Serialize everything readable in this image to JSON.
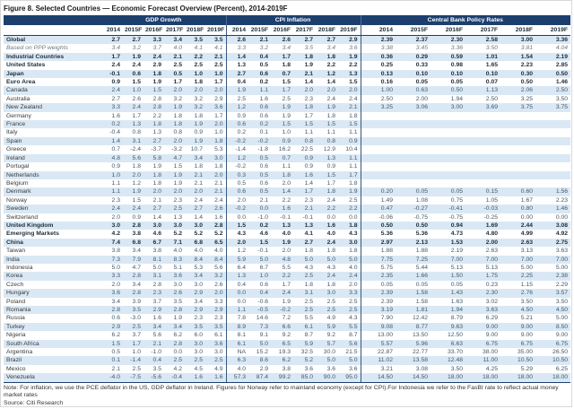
{
  "figure": {
    "title": "Figure 8. Selected Countries — Economic Forecast Overview (Percent), 2014-2019F"
  },
  "colors": {
    "header_bg": "#1c3f6e",
    "row_alt_bg": "#d9e8f4",
    "separator": "#35597f",
    "number_text": "#44586a"
  },
  "table": {
    "groups": [
      "GDP Growth",
      "CPI Inflation",
      "Central Bank Policy Rates"
    ],
    "years": [
      "2014",
      "2015F",
      "2016F",
      "2017F",
      "2018F",
      "2019F"
    ],
    "rows": [
      {
        "country": "Global",
        "style": "bold",
        "gdp": [
          "2.7",
          "2.7",
          "3.3",
          "3.4",
          "3.5",
          "3.5"
        ],
        "cpi": [
          "2.6",
          "2.1",
          "2.6",
          "2.7",
          "2.7",
          "2.9"
        ],
        "cbr": [
          "2.39",
          "2.37",
          "2.30",
          "2.58",
          "3.00",
          "3.36"
        ]
      },
      {
        "country": "Based on PPP weights",
        "style": "italic",
        "gdp": [
          "3.4",
          "3.2",
          "3.7",
          "4.0",
          "4.1",
          "4.1"
        ],
        "cpi": [
          "3.3",
          "3.2",
          "3.4",
          "3.5",
          "3.4",
          "3.6"
        ],
        "cbr": [
          "3.38",
          "3.45",
          "3.36",
          "3.50",
          "3.81",
          "4.04"
        ]
      },
      {
        "country": "Industrial Countries",
        "style": "bold",
        "gdp": [
          "1.7",
          "1.9",
          "2.4",
          "2.1",
          "2.2",
          "2.1"
        ],
        "cpi": [
          "1.4",
          "0.4",
          "1.7",
          "1.8",
          "1.8",
          "1.9"
        ],
        "cbr": [
          "0.36",
          "0.29",
          "0.59",
          "1.01",
          "1.54",
          "2.19"
        ]
      },
      {
        "country": "United States",
        "style": "bold",
        "gdp": [
          "2.4",
          "2.4",
          "2.9",
          "2.5",
          "2.5",
          "2.5"
        ],
        "cpi": [
          "1.3",
          "0.5",
          "1.8",
          "1.9",
          "2.2",
          "2.2"
        ],
        "cbr": [
          "0.25",
          "0.33",
          "0.98",
          "1.65",
          "2.23",
          "2.85"
        ]
      },
      {
        "country": "Japan",
        "style": "bold",
        "gdp": [
          "-0.1",
          "0.6",
          "1.8",
          "0.5",
          "1.0",
          "1.0"
        ],
        "cpi": [
          "2.7",
          "0.6",
          "0.7",
          "2.1",
          "1.2",
          "1.3"
        ],
        "cbr": [
          "0.13",
          "0.10",
          "0.10",
          "0.10",
          "0.30",
          "0.50"
        ]
      },
      {
        "country": "Euro Area",
        "style": "bold",
        "gdp": [
          "0.9",
          "1.5",
          "1.9",
          "1.7",
          "1.8",
          "1.7"
        ],
        "cpi": [
          "0.4",
          "0.2",
          "1.5",
          "1.4",
          "1.4",
          "1.5"
        ],
        "cbr": [
          "0.16",
          "0.05",
          "0.05",
          "0.07",
          "0.50",
          "1.46"
        ]
      },
      {
        "country": "Canada",
        "style": "normal",
        "gdp": [
          "2.4",
          "1.0",
          "1.5",
          "2.0",
          "2.0",
          "2.0"
        ],
        "cpi": [
          "1.9",
          "1.1",
          "1.7",
          "2.0",
          "2.0",
          "2.0"
        ],
        "cbr": [
          "1.00",
          "0.63",
          "0.50",
          "1.13",
          "2.06",
          "2.50"
        ]
      },
      {
        "country": "Australia",
        "style": "normal",
        "gdp": [
          "2.7",
          "2.6",
          "2.8",
          "3.2",
          "3.2",
          "2.9"
        ],
        "cpi": [
          "2.5",
          "1.6",
          "2.5",
          "2.3",
          "2.4",
          "2.4"
        ],
        "cbr": [
          "2.50",
          "2.00",
          "1.94",
          "2.50",
          "3.25",
          "3.50"
        ]
      },
      {
        "country": "New Zealand",
        "style": "normal",
        "gdp": [
          "3.3",
          "2.4",
          "2.8",
          "1.9",
          "3.2",
          "3.6"
        ],
        "cpi": [
          "1.2",
          "0.6",
          "1.9",
          "1.8",
          "1.9",
          "2.1"
        ],
        "cbr": [
          "3.25",
          "3.06",
          "3.00",
          "3.69",
          "3.75",
          "3.75"
        ]
      },
      {
        "country": "Germany",
        "style": "normal",
        "gdp": [
          "1.6",
          "1.7",
          "2.2",
          "1.8",
          "1.8",
          "1.7"
        ],
        "cpi": [
          "0.9",
          "0.6",
          "1.9",
          "1.7",
          "1.8",
          "1.8"
        ],
        "cbr": [
          "",
          "",
          "",
          "",
          "",
          ""
        ]
      },
      {
        "country": "France",
        "style": "normal",
        "gdp": [
          "0.2",
          "1.3",
          "1.8",
          "1.8",
          "1.9",
          "2.0"
        ],
        "cpi": [
          "0.6",
          "0.2",
          "1.5",
          "1.5",
          "1.5",
          "1.5"
        ],
        "cbr": [
          "",
          "",
          "",
          "",
          "",
          ""
        ]
      },
      {
        "country": "Italy",
        "style": "normal",
        "gdp": [
          "-0.4",
          "0.8",
          "1.3",
          "0.8",
          "0.9",
          "1.0"
        ],
        "cpi": [
          "0.2",
          "0.1",
          "1.0",
          "1.1",
          "1.1",
          "1.1"
        ],
        "cbr": [
          "",
          "",
          "",
          "",
          "",
          ""
        ]
      },
      {
        "country": "Spain",
        "style": "normal",
        "gdp": [
          "1.4",
          "3.1",
          "2.7",
          "2.0",
          "1.9",
          "1.8"
        ],
        "cpi": [
          "-0.2",
          "-0.2",
          "0.9",
          "0.8",
          "0.8",
          "0.9"
        ],
        "cbr": [
          "",
          "",
          "",
          "",
          "",
          ""
        ]
      },
      {
        "country": "Greece",
        "style": "normal",
        "gdp": [
          "0.7",
          "-2.4",
          "-3.7",
          "-3.2",
          "10.7",
          "5.3"
        ],
        "cpi": [
          "-1.4",
          "-1.8",
          "16.2",
          "22.5",
          "12.9",
          "10.4"
        ],
        "cbr": [
          "",
          "",
          "",
          "",
          "",
          ""
        ]
      },
      {
        "country": "Ireland",
        "style": "normal",
        "gdp": [
          "4.8",
          "5.6",
          "5.8",
          "4.7",
          "3.4",
          "3.0"
        ],
        "cpi": [
          "1.2",
          "0.5",
          "0.7",
          "0.9",
          "1.3",
          "1.1"
        ],
        "cbr": [
          "",
          "",
          "",
          "",
          "",
          ""
        ]
      },
      {
        "country": "Portugal",
        "style": "normal",
        "gdp": [
          "0.9",
          "1.8",
          "1.9",
          "1.5",
          "1.8",
          "1.8"
        ],
        "cpi": [
          "-0.2",
          "0.6",
          "1.1",
          "0.9",
          "0.9",
          "1.1"
        ],
        "cbr": [
          "",
          "",
          "",
          "",
          "",
          ""
        ]
      },
      {
        "country": "Netherlands",
        "style": "normal",
        "gdp": [
          "1.0",
          "2.0",
          "1.8",
          "1.9",
          "2.1",
          "2.0"
        ],
        "cpi": [
          "0.3",
          "0.5",
          "1.8",
          "1.6",
          "1.5",
          "1.7"
        ],
        "cbr": [
          "",
          "",
          "",
          "",
          "",
          ""
        ]
      },
      {
        "country": "Belgium",
        "style": "normal",
        "gdp": [
          "1.1",
          "1.2",
          "1.8",
          "1.9",
          "2.1",
          "2.1"
        ],
        "cpi": [
          "0.5",
          "0.6",
          "2.0",
          "1.4",
          "1.7",
          "1.8"
        ],
        "cbr": [
          "",
          "",
          "",
          "",
          "",
          ""
        ]
      },
      {
        "country": "Denmark",
        "style": "normal",
        "gdp": [
          "1.1",
          "1.9",
          "2.0",
          "2.0",
          "2.0",
          "2.1"
        ],
        "cpi": [
          "0.6",
          "0.5",
          "1.4",
          "1.7",
          "1.8",
          "1.9"
        ],
        "cbr": [
          "0.20",
          "0.05",
          "0.05",
          "0.15",
          "0.60",
          "1.56"
        ]
      },
      {
        "country": "Norway",
        "style": "normal",
        "gdp": [
          "2.3",
          "1.5",
          "2.1",
          "2.3",
          "2.4",
          "2.4"
        ],
        "cpi": [
          "2.0",
          "2.1",
          "2.2",
          "2.3",
          "2.4",
          "2.5"
        ],
        "cbr": [
          "1.49",
          "1.08",
          "0.75",
          "1.05",
          "1.67",
          "2.23"
        ]
      },
      {
        "country": "Sweden",
        "style": "normal",
        "gdp": [
          "2.4",
          "2.4",
          "2.7",
          "2.5",
          "2.7",
          "2.6"
        ],
        "cpi": [
          "-0.2",
          "0.0",
          "1.6",
          "2.1",
          "2.2",
          "2.2"
        ],
        "cbr": [
          "0.47",
          "-0.27",
          "-0.41",
          "-0.03",
          "0.80",
          "1.46"
        ]
      },
      {
        "country": "Switzerland",
        "style": "normal",
        "gdp": [
          "2.0",
          "0.9",
          "1.4",
          "1.3",
          "1.4",
          "1.6"
        ],
        "cpi": [
          "0.0",
          "-1.0",
          "-0.1",
          "-0.1",
          "0.0",
          "0.0"
        ],
        "cbr": [
          "-0.06",
          "-0.75",
          "-0.75",
          "-0.25",
          "0.00",
          "0.00"
        ]
      },
      {
        "country": "United Kingdom",
        "style": "bold",
        "gdp": [
          "3.0",
          "2.8",
          "3.0",
          "3.0",
          "3.0",
          "2.8"
        ],
        "cpi": [
          "1.5",
          "0.2",
          "1.3",
          "1.3",
          "1.6",
          "1.8"
        ],
        "cbr": [
          "0.50",
          "0.50",
          "0.94",
          "1.69",
          "2.44",
          "3.08"
        ]
      },
      {
        "country": "Emerging Markets",
        "style": "bold",
        "gdp": [
          "4.2",
          "3.8",
          "4.6",
          "5.2",
          "5.2",
          "5.2"
        ],
        "cpi": [
          "4.3",
          "4.6",
          "4.0",
          "4.1",
          "4.0",
          "4.3"
        ],
        "cbr": [
          "5.36",
          "5.36",
          "4.73",
          "4.80",
          "4.99",
          "4.92"
        ]
      },
      {
        "country": "China",
        "style": "bold",
        "gdp": [
          "7.4",
          "6.8",
          "6.7",
          "7.1",
          "6.8",
          "6.5"
        ],
        "cpi": [
          "2.0",
          "1.5",
          "1.9",
          "2.7",
          "2.4",
          "3.0"
        ],
        "cbr": [
          "2.97",
          "2.13",
          "1.53",
          "2.00",
          "2.63",
          "2.75"
        ]
      },
      {
        "country": "Taiwan",
        "style": "normal",
        "gdp": [
          "3.8",
          "3.4",
          "3.8",
          "4.0",
          "4.0",
          "4.0"
        ],
        "cpi": [
          "1.2",
          "-0.1",
          "2.0",
          "1.8",
          "1.8",
          "1.8"
        ],
        "cbr": [
          "1.88",
          "1.88",
          "2.19",
          "2.63",
          "3.13",
          "3.63"
        ]
      },
      {
        "country": "India",
        "style": "normal",
        "gdp": [
          "7.3",
          "7.9",
          "8.1",
          "8.3",
          "8.4",
          "8.4"
        ],
        "cpi": [
          "5.9",
          "5.0",
          "4.8",
          "5.0",
          "5.0",
          "5.0"
        ],
        "cbr": [
          "7.75",
          "7.25",
          "7.00",
          "7.00",
          "7.00",
          "7.00"
        ]
      },
      {
        "country": "Indonesia",
        "style": "normal",
        "gdp": [
          "5.0",
          "4.7",
          "5.0",
          "5.1",
          "5.3",
          "5.6"
        ],
        "cpi": [
          "6.4",
          "6.7",
          "5.5",
          "4.3",
          "4.3",
          "4.0"
        ],
        "cbr": [
          "5.75",
          "5.44",
          "5.13",
          "5.13",
          "5.00",
          "5.00"
        ]
      },
      {
        "country": "Korea",
        "style": "normal",
        "gdp": [
          "3.3",
          "2.8",
          "3.1",
          "3.6",
          "3.4",
          "3.2"
        ],
        "cpi": [
          "1.3",
          "1.0",
          "2.2",
          "2.5",
          "2.4",
          "2.4"
        ],
        "cbr": [
          "2.35",
          "1.66",
          "1.50",
          "1.75",
          "2.25",
          "2.38"
        ]
      },
      {
        "country": "Czech",
        "style": "normal",
        "gdp": [
          "2.0",
          "3.4",
          "2.8",
          "3.0",
          "3.0",
          "2.6"
        ],
        "cpi": [
          "0.4",
          "0.6",
          "1.7",
          "1.8",
          "1.8",
          "2.0"
        ],
        "cbr": [
          "0.05",
          "0.05",
          "0.05",
          "0.23",
          "1.15",
          "2.29"
        ]
      },
      {
        "country": "Hungary",
        "style": "normal",
        "gdp": [
          "3.6",
          "2.8",
          "2.3",
          "2.6",
          "2.9",
          "2.0"
        ],
        "cpi": [
          "0.0",
          "0.4",
          "2.4",
          "3.1",
          "3.0",
          "3.3"
        ],
        "cbr": [
          "2.39",
          "1.58",
          "1.43",
          "2.30",
          "2.76",
          "3.57"
        ]
      },
      {
        "country": "Poland",
        "style": "normal",
        "gdp": [
          "3.4",
          "3.9",
          "3.7",
          "3.5",
          "3.4",
          "3.3"
        ],
        "cpi": [
          "0.0",
          "-0.6",
          "1.9",
          "2.5",
          "2.5",
          "2.5"
        ],
        "cbr": [
          "2.39",
          "1.58",
          "1.63",
          "3.02",
          "3.50",
          "3.50"
        ]
      },
      {
        "country": "Romania",
        "style": "normal",
        "gdp": [
          "2.8",
          "3.5",
          "2.9",
          "2.8",
          "2.9",
          "2.9"
        ],
        "cpi": [
          "1.1",
          "-0.5",
          "-0.2",
          "2.5",
          "2.5",
          "2.5"
        ],
        "cbr": [
          "3.19",
          "1.81",
          "1.94",
          "3.63",
          "4.50",
          "4.50"
        ]
      },
      {
        "country": "Russia",
        "style": "normal",
        "gdp": [
          "0.6",
          "-3.0",
          "1.6",
          "1.9",
          "2.3",
          "2.3"
        ],
        "cpi": [
          "7.8",
          "14.6",
          "7.2",
          "5.5",
          "4.9",
          "4.3"
        ],
        "cbr": [
          "7.90",
          "12.42",
          "8.79",
          "6.29",
          "5.21",
          "5.00"
        ]
      },
      {
        "country": "Turkey",
        "style": "normal",
        "gdp": [
          "2.9",
          "2.5",
          "3.4",
          "3.4",
          "3.5",
          "3.5"
        ],
        "cpi": [
          "8.9",
          "7.3",
          "6.6",
          "6.1",
          "5.9",
          "5.5"
        ],
        "cbr": [
          "9.08",
          "8.77",
          "9.63",
          "9.00",
          "9.00",
          "8.50"
        ]
      },
      {
        "country": "Nigeria",
        "style": "normal",
        "gdp": [
          "6.2",
          "3.7",
          "5.6",
          "6.2",
          "6.0",
          "6.1"
        ],
        "cpi": [
          "8.1",
          "9.1",
          "9.2",
          "8.7",
          "9.2",
          "8.7"
        ],
        "cbr": [
          "13.00",
          "13.50",
          "12.50",
          "9.00",
          "9.00",
          "9.00"
        ]
      },
      {
        "country": "South Africa",
        "style": "normal",
        "gdp": [
          "1.5",
          "1.7",
          "2.1",
          "2.8",
          "3.0",
          "3.6"
        ],
        "cpi": [
          "6.1",
          "5.0",
          "6.5",
          "5.9",
          "5.7",
          "5.6"
        ],
        "cbr": [
          "5.57",
          "5.96",
          "6.63",
          "6.75",
          "6.75",
          "6.75"
        ]
      },
      {
        "country": "Argentina",
        "style": "normal",
        "gdp": [
          "0.5",
          "1.0",
          "-1.0",
          "0.0",
          "3.0",
          "3.0"
        ],
        "cpi": [
          "NA",
          "15.2",
          "19.3",
          "32.5",
          "30.0",
          "21.5"
        ],
        "cbr": [
          "22.87",
          "22.77",
          "33.70",
          "38.00",
          "35.00",
          "26.50"
        ]
      },
      {
        "country": "Brazil",
        "style": "normal",
        "gdp": [
          "0.1",
          "-1.4",
          "0.4",
          "2.5",
          "2.5",
          "2.5"
        ],
        "cpi": [
          "6.3",
          "8.6",
          "6.2",
          "5.2",
          "5.0",
          "5.0"
        ],
        "cbr": [
          "11.02",
          "13.58",
          "12.48",
          "11.00",
          "10.50",
          "10.50"
        ]
      },
      {
        "country": "Mexico",
        "style": "normal",
        "gdp": [
          "2.1",
          "2.5",
          "3.5",
          "4.2",
          "4.5",
          "4.9"
        ],
        "cpi": [
          "4.0",
          "2.9",
          "3.8",
          "3.6",
          "3.6",
          "3.6"
        ],
        "cbr": [
          "3.21",
          "3.08",
          "3.50",
          "4.25",
          "5.29",
          "6.25"
        ]
      },
      {
        "country": "Venezuela",
        "style": "normal",
        "gdp": [
          "-4.0",
          "-7.5",
          "-5.6",
          "-0.4",
          "1.6",
          "1.6"
        ],
        "cpi": [
          "57.3",
          "87.4",
          "99.2",
          "85.0",
          "90.0",
          "95.0"
        ],
        "cbr": [
          "14.50",
          "14.50",
          "18.00",
          "18.00",
          "18.00",
          "18.00"
        ]
      }
    ]
  },
  "footer": {
    "note": "Note: For inflation, we use the PCE deflator in the US, GDP deflator in Ireland. Figures for Norway refer to mainland economy (except for CPI).For Indonesia we refer to the FasBI rate to reflect actual money market rates",
    "source": "Source: Citi Research"
  }
}
